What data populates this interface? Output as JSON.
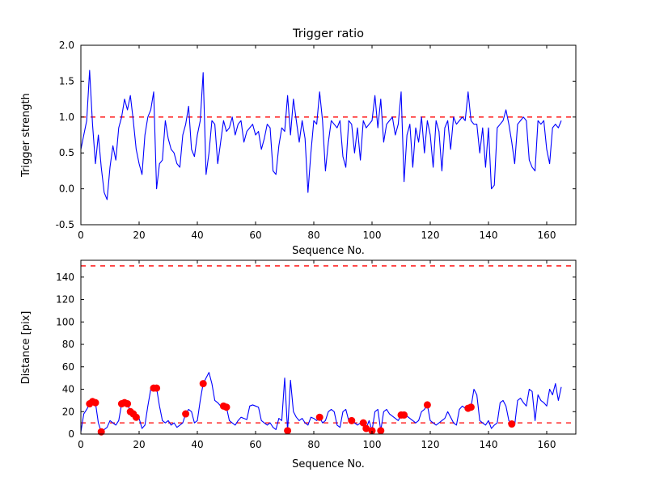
{
  "figure": {
    "background": "#ffffff"
  },
  "chart_data": [
    {
      "type": "line",
      "title": "Trigger ratio",
      "xlabel": "Sequence No.",
      "ylabel": "Trigger strength",
      "xlim": [
        0,
        170
      ],
      "ylim": [
        -0.5,
        2.0
      ],
      "xticks": [
        0,
        20,
        40,
        60,
        80,
        100,
        120,
        140,
        160
      ],
      "yticks": [
        -0.5,
        0.0,
        0.5,
        1.0,
        1.5,
        2.0
      ],
      "ytick_labels": [
        "-0.5",
        "0.0",
        "0.5",
        "1.0",
        "1.5",
        "2.0"
      ],
      "grid": false,
      "legend": "none",
      "line_color": "#0000ff",
      "threshold_color": "#ff0000",
      "threshold_lines": [
        1.0
      ],
      "x_is_index": true,
      "values": [
        0.55,
        0.75,
        0.95,
        1.65,
        0.9,
        0.35,
        0.75,
        0.3,
        -0.05,
        -0.15,
        0.3,
        0.6,
        0.4,
        0.85,
        1.0,
        1.25,
        1.1,
        1.3,
        0.95,
        0.55,
        0.35,
        0.2,
        0.75,
        1.0,
        1.1,
        1.35,
        0.0,
        0.35,
        0.4,
        0.95,
        0.7,
        0.55,
        0.5,
        0.35,
        0.3,
        0.75,
        0.9,
        1.15,
        0.55,
        0.45,
        0.75,
        0.95,
        1.62,
        0.2,
        0.5,
        0.95,
        0.9,
        0.35,
        0.65,
        0.95,
        0.8,
        0.85,
        1.0,
        0.75,
        0.9,
        0.95,
        0.65,
        0.8,
        0.85,
        0.9,
        0.75,
        0.8,
        0.55,
        0.7,
        0.9,
        0.85,
        0.25,
        0.2,
        0.6,
        0.85,
        0.8,
        1.3,
        0.75,
        1.25,
        0.95,
        0.65,
        0.95,
        0.7,
        -0.05,
        0.5,
        0.95,
        0.9,
        1.35,
        0.95,
        0.25,
        0.65,
        0.95,
        0.9,
        0.85,
        0.95,
        0.45,
        0.3,
        0.95,
        0.9,
        0.5,
        0.85,
        0.4,
        0.95,
        0.85,
        0.9,
        0.95,
        1.3,
        0.85,
        1.25,
        0.65,
        0.9,
        0.95,
        1.0,
        0.75,
        0.9,
        1.35,
        0.1,
        0.75,
        0.9,
        0.3,
        0.85,
        0.65,
        1.0,
        0.5,
        0.95,
        0.75,
        0.3,
        0.95,
        0.8,
        0.25,
        0.85,
        0.95,
        0.55,
        1.0,
        0.9,
        0.95,
        1.0,
        0.95,
        1.35,
        0.95,
        0.9,
        0.9,
        0.5,
        0.85,
        0.3,
        0.85,
        0.0,
        0.05,
        0.85,
        0.9,
        0.95,
        1.1,
        0.9,
        0.65,
        0.35,
        0.9,
        0.95,
        1.0,
        0.95,
        0.4,
        0.3,
        0.25,
        0.95,
        0.9,
        0.95,
        0.55,
        0.35,
        0.85,
        0.9,
        0.85,
        0.95
      ]
    },
    {
      "type": "line",
      "title": "",
      "xlabel": "Sequence No.",
      "ylabel": "Distance [pix]",
      "xlim": [
        0,
        170
      ],
      "ylim": [
        0,
        155
      ],
      "xticks": [
        0,
        20,
        40,
        60,
        80,
        100,
        120,
        140,
        160
      ],
      "yticks": [
        0,
        20,
        40,
        60,
        80,
        100,
        120,
        140
      ],
      "ytick_labels": [
        "0",
        "20",
        "40",
        "60",
        "80",
        "100",
        "120",
        "140"
      ],
      "grid": false,
      "legend": "none",
      "line_color": "#0000ff",
      "threshold_color": "#ff0000",
      "threshold_lines": [
        150,
        10
      ],
      "marker_color": "#ff0000",
      "x_is_index": true,
      "values": [
        2,
        18,
        22,
        27,
        29,
        28,
        10,
        2,
        4,
        6,
        12,
        10,
        8,
        12,
        27,
        28,
        27,
        20,
        18,
        15,
        14,
        5,
        8,
        25,
        40,
        41,
        41,
        25,
        12,
        10,
        12,
        8,
        10,
        6,
        8,
        10,
        18,
        22,
        20,
        10,
        12,
        30,
        45,
        50,
        55,
        45,
        30,
        28,
        25,
        25,
        24,
        12,
        10,
        8,
        12,
        15,
        14,
        13,
        25,
        26,
        25,
        24,
        12,
        10,
        8,
        10,
        6,
        4,
        14,
        12,
        50,
        3,
        48,
        20,
        15,
        12,
        14,
        10,
        8,
        15,
        14,
        12,
        15,
        10,
        12,
        20,
        22,
        20,
        8,
        6,
        20,
        22,
        12,
        12,
        10,
        8,
        10,
        10,
        5,
        12,
        3,
        20,
        22,
        3,
        20,
        22,
        18,
        16,
        14,
        12,
        17,
        17,
        16,
        14,
        12,
        10,
        12,
        20,
        22,
        26,
        12,
        10,
        8,
        10,
        12,
        14,
        20,
        15,
        10,
        8,
        22,
        25,
        23,
        23,
        24,
        40,
        35,
        12,
        10,
        8,
        12,
        5,
        8,
        10,
        28,
        30,
        25,
        12,
        9,
        8,
        30,
        32,
        28,
        25,
        40,
        38,
        12,
        35,
        30,
        28,
        25,
        40,
        35,
        45,
        30,
        42
      ],
      "markers": [
        {
          "x": 3,
          "y": 27
        },
        {
          "x": 4,
          "y": 29
        },
        {
          "x": 5,
          "y": 28
        },
        {
          "x": 7,
          "y": 2
        },
        {
          "x": 14,
          "y": 27
        },
        {
          "x": 15,
          "y": 28
        },
        {
          "x": 16,
          "y": 27
        },
        {
          "x": 17,
          "y": 20
        },
        {
          "x": 18,
          "y": 18
        },
        {
          "x": 19,
          "y": 15
        },
        {
          "x": 25,
          "y": 41
        },
        {
          "x": 26,
          "y": 41
        },
        {
          "x": 36,
          "y": 18
        },
        {
          "x": 42,
          "y": 45
        },
        {
          "x": 49,
          "y": 25
        },
        {
          "x": 50,
          "y": 24
        },
        {
          "x": 71,
          "y": 3
        },
        {
          "x": 82,
          "y": 15
        },
        {
          "x": 93,
          "y": 12
        },
        {
          "x": 97,
          "y": 10
        },
        {
          "x": 98,
          "y": 5
        },
        {
          "x": 100,
          "y": 3
        },
        {
          "x": 103,
          "y": 3
        },
        {
          "x": 110,
          "y": 17
        },
        {
          "x": 111,
          "y": 17
        },
        {
          "x": 119,
          "y": 26
        },
        {
          "x": 133,
          "y": 23
        },
        {
          "x": 134,
          "y": 24
        },
        {
          "x": 148,
          "y": 9
        }
      ]
    }
  ]
}
